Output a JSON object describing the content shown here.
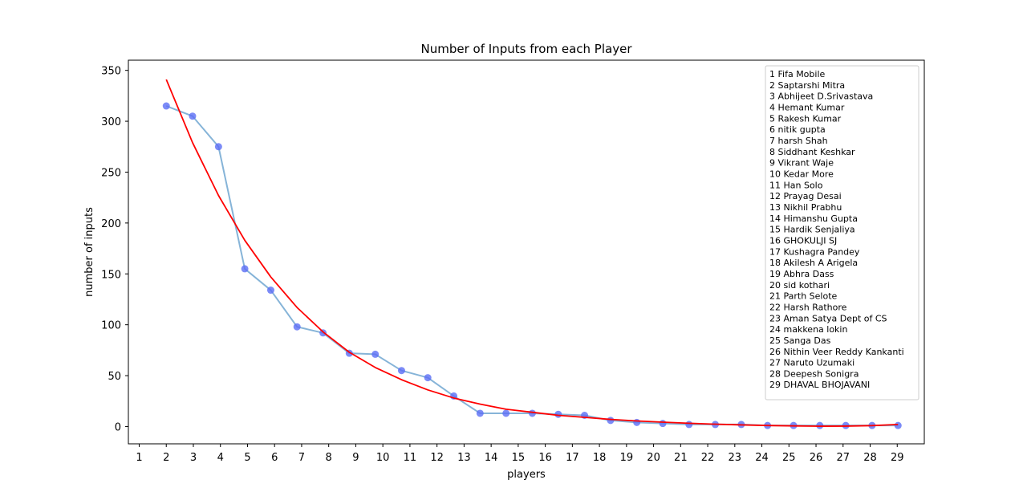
{
  "chart_data": {
    "type": "line",
    "title": "Number of Inputs from each Player",
    "xlabel": "players",
    "ylabel": "number of inputs",
    "xlim": [
      0.6,
      30.0
    ],
    "ylim": [
      -17,
      360
    ],
    "x_tick_values": [
      1,
      2,
      3,
      4,
      5,
      6,
      7,
      8,
      9,
      10,
      11,
      12,
      13,
      14,
      15,
      16,
      17,
      18,
      19,
      20,
      21,
      22,
      23,
      24,
      25,
      26,
      27,
      28,
      29
    ],
    "x_tick_labels": [
      "1",
      "2",
      "3",
      "4",
      "5",
      "6",
      "7",
      "8",
      "9",
      "10",
      "11",
      "12",
      "13",
      "14",
      "15",
      "16",
      "17",
      "18",
      "19",
      "20",
      "21",
      "22",
      "23",
      "24",
      "25",
      "26",
      "27",
      "28",
      "29"
    ],
    "y_ticks": [
      0,
      50,
      100,
      150,
      200,
      250,
      300,
      350
    ],
    "grid": false,
    "series": [
      {
        "style": "line-with-markers",
        "line_color": "#86b4d8",
        "marker_color": "#5b6ef5",
        "x": [
          2.0,
          2.97,
          3.93,
          4.9,
          5.86,
          6.83,
          7.79,
          8.76,
          9.72,
          10.69,
          11.66,
          12.62,
          13.59,
          14.55,
          15.52,
          16.48,
          17.45,
          18.41,
          19.38,
          20.34,
          21.31,
          22.28,
          23.24,
          24.21,
          25.17,
          26.14,
          27.1,
          28.07,
          29.03
        ],
        "y": [
          315,
          305,
          275,
          155,
          134,
          98,
          92,
          72,
          71,
          55,
          48,
          30,
          13,
          13,
          13,
          12,
          11,
          6,
          4,
          3,
          2,
          2,
          2,
          1,
          1,
          1,
          1,
          1,
          1
        ]
      },
      {
        "style": "line",
        "line_color": "#ff0000",
        "x": [
          2.0,
          2.97,
          3.93,
          4.9,
          5.86,
          6.83,
          7.79,
          8.76,
          9.72,
          10.69,
          11.66,
          12.62,
          13.59,
          14.55,
          15.52,
          16.48,
          17.45,
          18.41,
          19.38,
          20.34,
          21.31,
          22.28,
          23.24,
          24.21,
          25.17,
          26.14,
          27.1,
          28.07,
          29.03
        ],
        "y": [
          341,
          279,
          227,
          183,
          147,
          117,
          93,
          73,
          58,
          46,
          36,
          28,
          22,
          17,
          14,
          11,
          9,
          7,
          5.5,
          4.3,
          3.2,
          2.3,
          1.6,
          1.0,
          0.6,
          0.3,
          0.4,
          0.9,
          2.0
        ]
      }
    ],
    "legend": {
      "placement": "top-right",
      "entries": [
        "1 Fifa Mobile",
        "2 Saptarshi Mitra",
        "3 Abhijeet D.Srivastava",
        "4 Hemant Kumar",
        "5 Rakesh Kumar",
        "6 nitik gupta",
        "7 harsh Shah",
        "8 Siddhant Keshkar",
        "9 Vikrant Waje",
        "10 Kedar More",
        "11 Han Solo",
        "12 Prayag Desai",
        "13 Nikhil Prabhu",
        "14 Himanshu Gupta",
        "15 Hardik Senjaliya",
        "16 GHOKULJI SJ",
        "17 Kushagra Pandey",
        "18 Akilesh A Arigela",
        "19 Abhra Dass",
        "20 sid kothari",
        "21 Parth Selote",
        "22 Harsh Rathore",
        "23 Aman Satya Dept of CS",
        "24 makkena lokin",
        "25 Sanga Das",
        "26 Nithin Veer Reddy Kankanti",
        "27 Naruto Uzumaki",
        "28 Deepesh Sonigra",
        "29 DHAVAL BHOJAVANI"
      ]
    }
  }
}
